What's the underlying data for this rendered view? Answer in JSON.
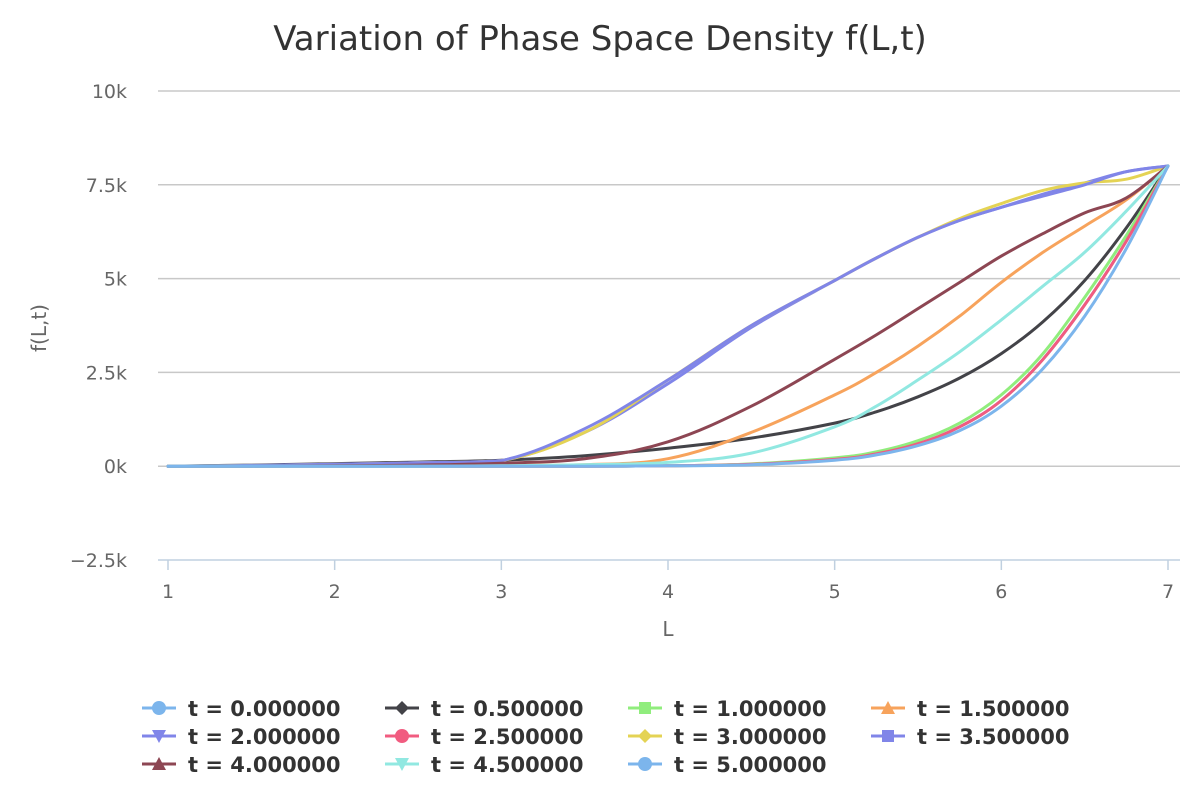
{
  "chart_data": {
    "type": "line",
    "title": "Variation of Phase Space Density f(L,t)",
    "xlabel": "L",
    "ylabel": "f(L,t)",
    "xlim": [
      1,
      7
    ],
    "ylim": [
      -2500,
      10000
    ],
    "x_ticks": [
      "1",
      "2",
      "3",
      "4",
      "5",
      "6",
      "7"
    ],
    "y_ticks": [
      "−2.5k",
      "0k",
      "2.5k",
      "5k",
      "7.5k",
      "10k"
    ],
    "grid": true,
    "legend_position": "bottom",
    "x": [
      1.0,
      1.5,
      2.0,
      2.5,
      3.0,
      3.5,
      4.0,
      4.5,
      5.0,
      5.25,
      5.5,
      5.75,
      6.0,
      6.25,
      6.5,
      6.75,
      7.0
    ],
    "series": [
      {
        "name": "t = 0.000000",
        "color": "#7cb5ec",
        "marker": "circle",
        "values": [
          0,
          0,
          0,
          0,
          0,
          0,
          10,
          50,
          180,
          330,
          600,
          1050,
          1750,
          2850,
          4300,
          6000,
          8000
        ]
      },
      {
        "name": "t = 0.500000",
        "color": "#434348",
        "marker": "diamond",
        "values": [
          0,
          30,
          70,
          110,
          160,
          280,
          480,
          750,
          1150,
          1450,
          1850,
          2350,
          3000,
          3850,
          4950,
          6350,
          8000
        ]
      },
      {
        "name": "t = 1.000000",
        "color": "#90ed7d",
        "marker": "square",
        "values": [
          0,
          0,
          0,
          0,
          0,
          0,
          10,
          60,
          220,
          380,
          680,
          1150,
          1900,
          3000,
          4500,
          6150,
          8000
        ]
      },
      {
        "name": "t = 1.500000",
        "color": "#f7a35c",
        "marker": "triangle",
        "values": [
          0,
          0,
          0,
          10,
          20,
          40,
          200,
          900,
          1900,
          2500,
          3200,
          4000,
          4900,
          5700,
          6400,
          7100,
          8000
        ]
      },
      {
        "name": "t = 2.000000",
        "color": "#8085e9",
        "marker": "triangle-down",
        "values": [
          0,
          20,
          50,
          90,
          150,
          900,
          2200,
          3700,
          4950,
          5550,
          6100,
          6550,
          6900,
          7250,
          7550,
          7850,
          8000
        ]
      },
      {
        "name": "t = 2.500000",
        "color": "#f15c80",
        "marker": "circle",
        "values": [
          0,
          0,
          0,
          0,
          0,
          0,
          10,
          50,
          180,
          330,
          600,
          1050,
          1750,
          2850,
          4300,
          6000,
          8000
        ]
      },
      {
        "name": "t = 3.000000",
        "color": "#e4d354",
        "marker": "diamond",
        "values": [
          0,
          20,
          50,
          90,
          150,
          900,
          2300,
          3750,
          4950,
          5550,
          6100,
          6600,
          7000,
          7350,
          7550,
          7650,
          8000
        ]
      },
      {
        "name": "t = 3.500000",
        "color": "#8085e8",
        "marker": "square",
        "values": [
          0,
          20,
          50,
          90,
          150,
          1000,
          2300,
          3750,
          4950,
          5550,
          6100,
          6550,
          6900,
          7200,
          7500,
          7850,
          8000
        ]
      },
      {
        "name": "t = 4.000000",
        "color": "#8d4653",
        "marker": "triangle",
        "values": [
          0,
          0,
          10,
          30,
          80,
          200,
          650,
          1600,
          2850,
          3500,
          4200,
          4900,
          5600,
          6200,
          6750,
          7150,
          8000
        ]
      },
      {
        "name": "t = 4.500000",
        "color": "#91e8e1",
        "marker": "triangle-down",
        "values": [
          0,
          0,
          0,
          0,
          10,
          40,
          100,
          350,
          1050,
          1600,
          2300,
          3050,
          3900,
          4800,
          5700,
          6800,
          8000
        ]
      },
      {
        "name": "t = 5.000000",
        "color": "#7cb5ec",
        "marker": "circle",
        "values": [
          0,
          0,
          0,
          0,
          0,
          0,
          10,
          40,
          160,
          300,
          550,
          950,
          1600,
          2600,
          4000,
          5800,
          8000
        ]
      }
    ]
  }
}
